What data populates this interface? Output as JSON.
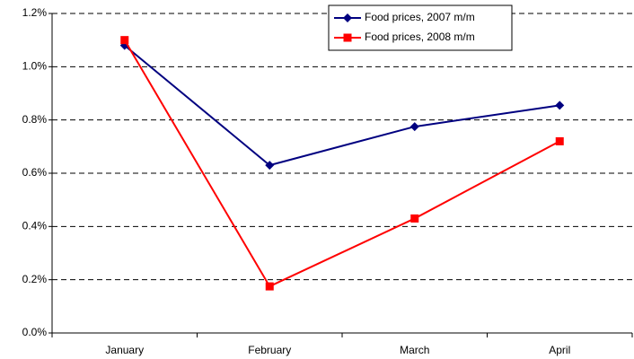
{
  "chart_data": {
    "type": "line",
    "categories": [
      "January",
      "February",
      "March",
      "April"
    ],
    "series": [
      {
        "name": "Food prices, 2007 m/m",
        "color": "#000080",
        "marker": "diamond",
        "values": [
          1.08,
          0.63,
          0.775,
          0.855
        ]
      },
      {
        "name": "Food prices, 2008 m/m",
        "color": "#ff0000",
        "marker": "square",
        "values": [
          1.1,
          0.175,
          0.43,
          0.72
        ]
      }
    ],
    "ylim": [
      0,
      1.2
    ],
    "yticks": [
      {
        "value": 0,
        "label": "0.0%"
      },
      {
        "value": 0.2,
        "label": "0.2%"
      },
      {
        "value": 0.4,
        "label": "0.4%"
      },
      {
        "value": 0.6,
        "label": "0.6%"
      },
      {
        "value": 0.8,
        "label": "0.8%"
      },
      {
        "value": 1.0,
        "label": "1.0%"
      },
      {
        "value": 1.2,
        "label": "1.2%"
      }
    ],
    "grid": true
  }
}
